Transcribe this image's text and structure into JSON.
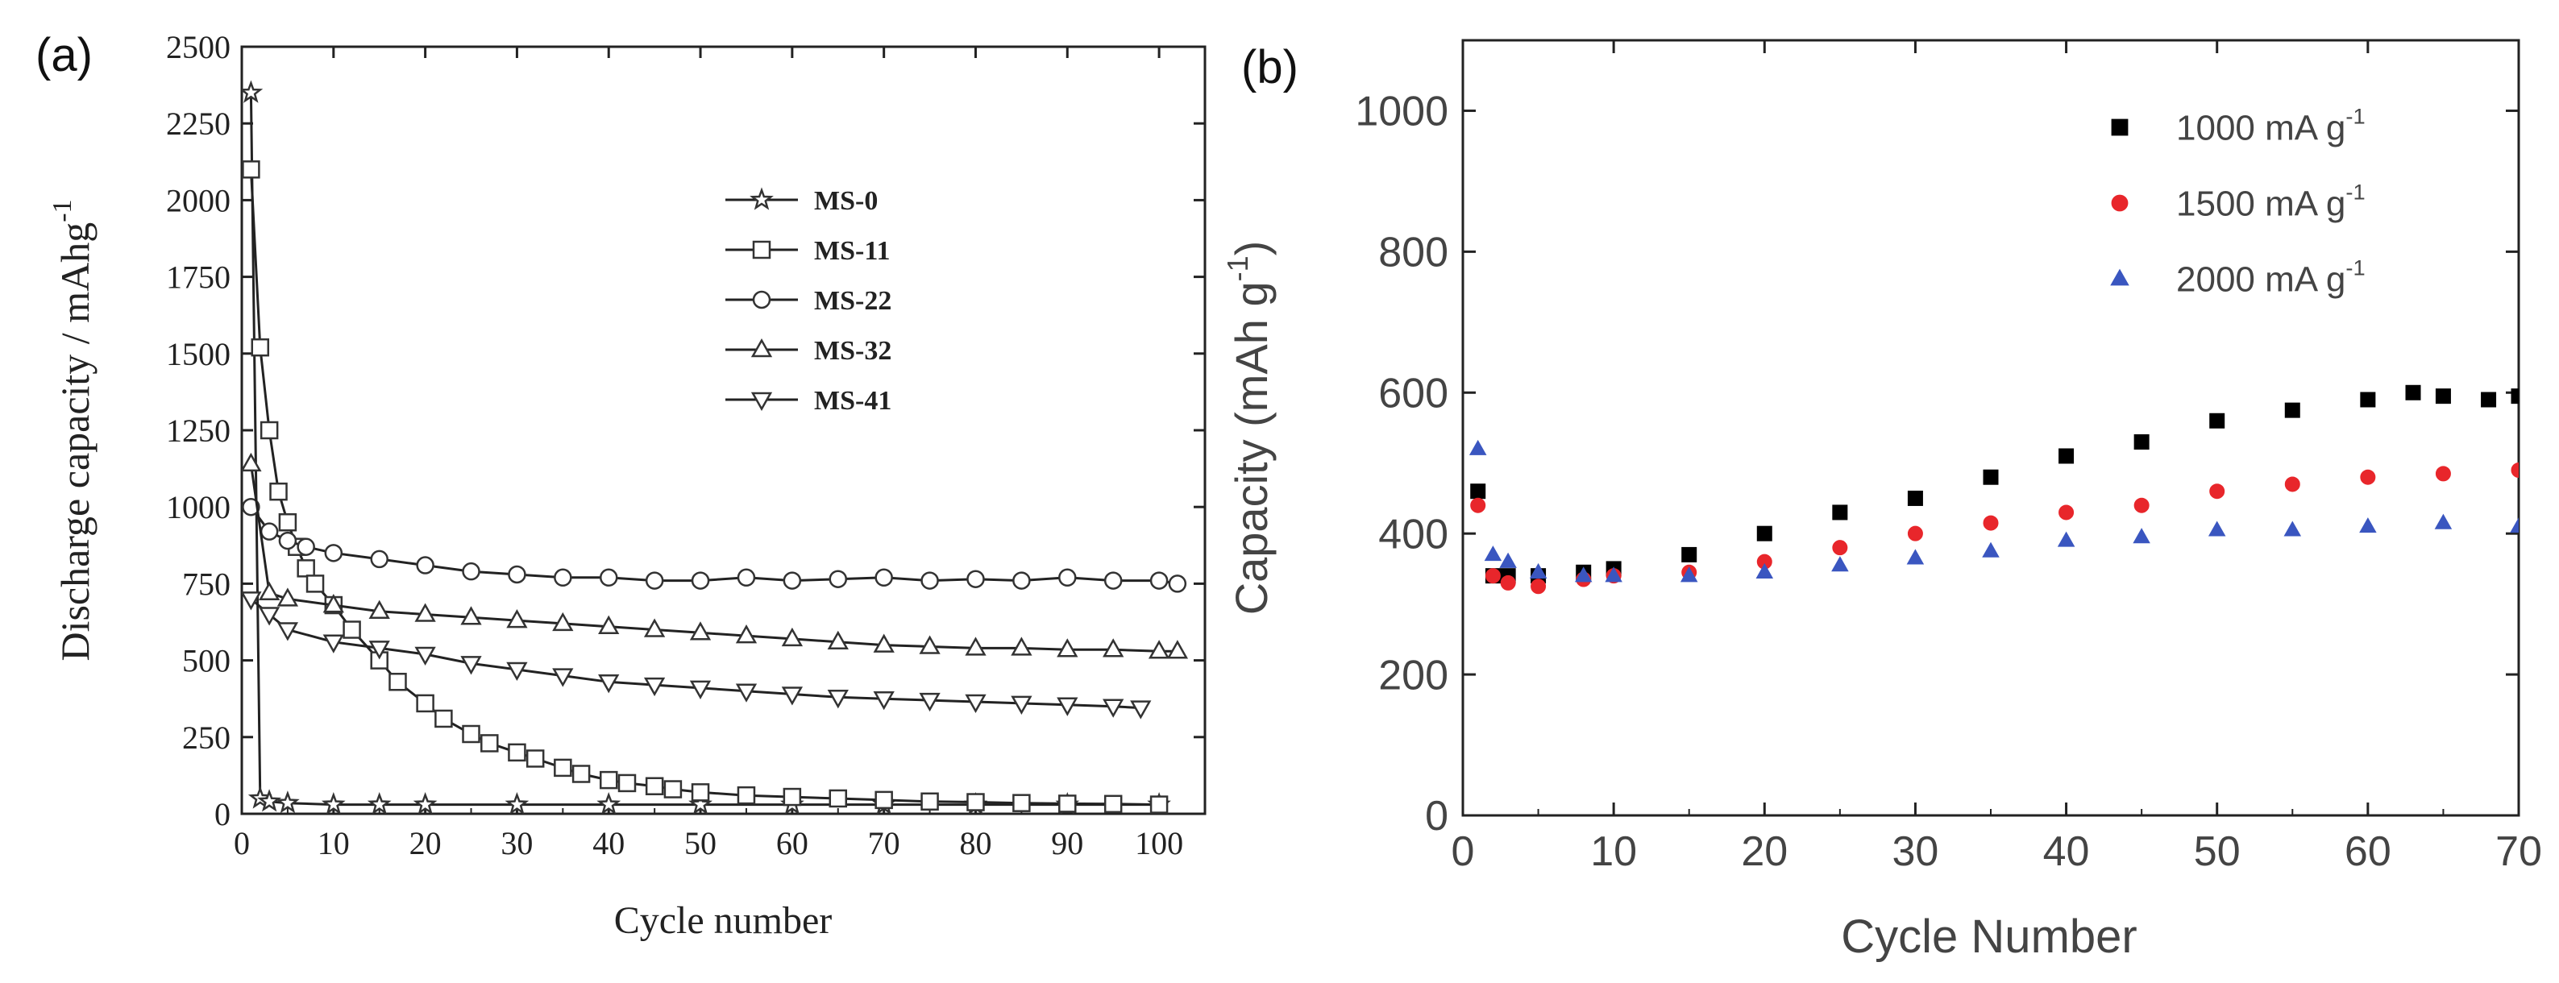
{
  "chart_data": [
    {
      "type": "scatter",
      "panel_label": "(a)",
      "title": "",
      "xlabel": "Cycle number",
      "ylabel": "Discharge capacity / mAhg",
      "ylabel_superscript": "-1",
      "xlim": [
        0,
        105
      ],
      "ylim": [
        0,
        2500
      ],
      "xticks": [
        0,
        10,
        20,
        30,
        40,
        50,
        60,
        70,
        80,
        90,
        100
      ],
      "xtick_labels": [
        "0",
        "10",
        "20",
        "30",
        "40",
        "50",
        "60",
        "70",
        "80",
        "90",
        "100"
      ],
      "yticks": [
        0,
        250,
        500,
        750,
        1000,
        1250,
        1500,
        1750,
        2000,
        2250,
        2500
      ],
      "ytick_labels": [
        "0",
        "250",
        "500",
        "750",
        "1000",
        "1250",
        "1500",
        "1750",
        "2000",
        "2250",
        "2500"
      ],
      "grid": false,
      "legend_position": "top-right",
      "series": [
        {
          "name": "MS-0",
          "marker": "star",
          "color": "#333333",
          "x": [
            1,
            2,
            3,
            5,
            10,
            15,
            20,
            30,
            40,
            50,
            60,
            70,
            80,
            90,
            100
          ],
          "y": [
            2350,
            50,
            40,
            35,
            30,
            30,
            30,
            30,
            30,
            30,
            30,
            30,
            30,
            30,
            30
          ]
        },
        {
          "name": "MS-11",
          "marker": "square",
          "color": "#333333",
          "x": [
            1,
            2,
            3,
            4,
            5,
            6,
            7,
            8,
            10,
            12,
            15,
            17,
            20,
            22,
            25,
            27,
            30,
            32,
            35,
            37,
            40,
            42,
            45,
            47,
            50,
            55,
            60,
            65,
            70,
            75,
            80,
            85,
            90,
            95,
            100
          ],
          "y": [
            2100,
            1520,
            1250,
            1050,
            950,
            870,
            800,
            750,
            680,
            600,
            500,
            430,
            360,
            310,
            260,
            230,
            200,
            180,
            150,
            130,
            110,
            100,
            90,
            80,
            70,
            60,
            55,
            50,
            45,
            40,
            38,
            35,
            33,
            32,
            30
          ]
        },
        {
          "name": "MS-22",
          "marker": "circle",
          "color": "#333333",
          "x": [
            1,
            3,
            5,
            7,
            10,
            15,
            20,
            25,
            30,
            35,
            40,
            45,
            50,
            55,
            60,
            65,
            70,
            75,
            80,
            85,
            90,
            95,
            100,
            102
          ],
          "y": [
            1000,
            920,
            890,
            870,
            850,
            830,
            810,
            790,
            780,
            770,
            770,
            760,
            760,
            770,
            760,
            765,
            770,
            760,
            765,
            760,
            770,
            760,
            760,
            750
          ]
        },
        {
          "name": "MS-32",
          "marker": "triangle-up",
          "color": "#333333",
          "x": [
            1,
            3,
            5,
            10,
            15,
            20,
            25,
            30,
            35,
            40,
            45,
            50,
            55,
            60,
            65,
            70,
            75,
            80,
            85,
            90,
            95,
            100,
            102
          ],
          "y": [
            1140,
            720,
            700,
            680,
            660,
            650,
            640,
            630,
            620,
            610,
            600,
            590,
            580,
            570,
            560,
            550,
            545,
            540,
            540,
            535,
            535,
            530,
            530
          ]
        },
        {
          "name": "MS-41",
          "marker": "triangle-down",
          "color": "#333333",
          "x": [
            1,
            3,
            5,
            10,
            15,
            20,
            25,
            30,
            35,
            40,
            45,
            50,
            55,
            60,
            65,
            70,
            75,
            80,
            85,
            90,
            95,
            98
          ],
          "y": [
            700,
            650,
            600,
            560,
            540,
            520,
            490,
            470,
            450,
            430,
            420,
            410,
            400,
            390,
            380,
            375,
            370,
            365,
            360,
            355,
            350,
            345
          ]
        }
      ]
    },
    {
      "type": "scatter",
      "panel_label": "(b)",
      "title": "",
      "xlabel": "Cycle Number",
      "ylabel": "Capacity (mAh g",
      "ylabel_superscript": "-1",
      "ylabel_suffix": ")",
      "xlim": [
        0,
        70
      ],
      "ylim": [
        0,
        1100
      ],
      "xticks": [
        0,
        10,
        20,
        30,
        40,
        50,
        60,
        70
      ],
      "xtick_labels": [
        "0",
        "10",
        "20",
        "30",
        "40",
        "50",
        "60",
        "70"
      ],
      "yticks": [
        0,
        200,
        400,
        600,
        800,
        1000
      ],
      "ytick_labels": [
        "0",
        "200",
        "400",
        "600",
        "800",
        "1000"
      ],
      "grid": false,
      "legend_position": "top-right",
      "series": [
        {
          "name": "1000 mA g",
          "name_superscript": "-1",
          "marker": "square",
          "color": "#000000",
          "x": [
            1,
            2,
            3,
            5,
            8,
            10,
            15,
            20,
            25,
            30,
            35,
            40,
            45,
            50,
            55,
            60,
            63,
            65,
            68,
            70
          ],
          "y": [
            460,
            340,
            340,
            340,
            345,
            350,
            370,
            400,
            430,
            450,
            480,
            510,
            530,
            560,
            575,
            590,
            600,
            595,
            590,
            595
          ]
        },
        {
          "name": "1500 mA g",
          "name_superscript": "-1",
          "marker": "circle",
          "color": "#e8262b",
          "x": [
            1,
            2,
            3,
            5,
            8,
            10,
            15,
            20,
            25,
            30,
            35,
            40,
            45,
            50,
            55,
            60,
            65,
            70
          ],
          "y": [
            440,
            340,
            330,
            325,
            335,
            340,
            345,
            360,
            380,
            400,
            415,
            430,
            440,
            460,
            470,
            480,
            485,
            490
          ]
        },
        {
          "name": "2000 mA g",
          "name_superscript": "-1",
          "marker": "triangle-up",
          "color": "#3a56c0",
          "x": [
            1,
            2,
            3,
            5,
            8,
            10,
            15,
            20,
            25,
            30,
            35,
            40,
            45,
            50,
            55,
            60,
            65,
            70
          ],
          "y": [
            520,
            370,
            360,
            345,
            340,
            340,
            340,
            345,
            355,
            365,
            375,
            390,
            395,
            405,
            405,
            410,
            415,
            410
          ]
        }
      ]
    }
  ]
}
